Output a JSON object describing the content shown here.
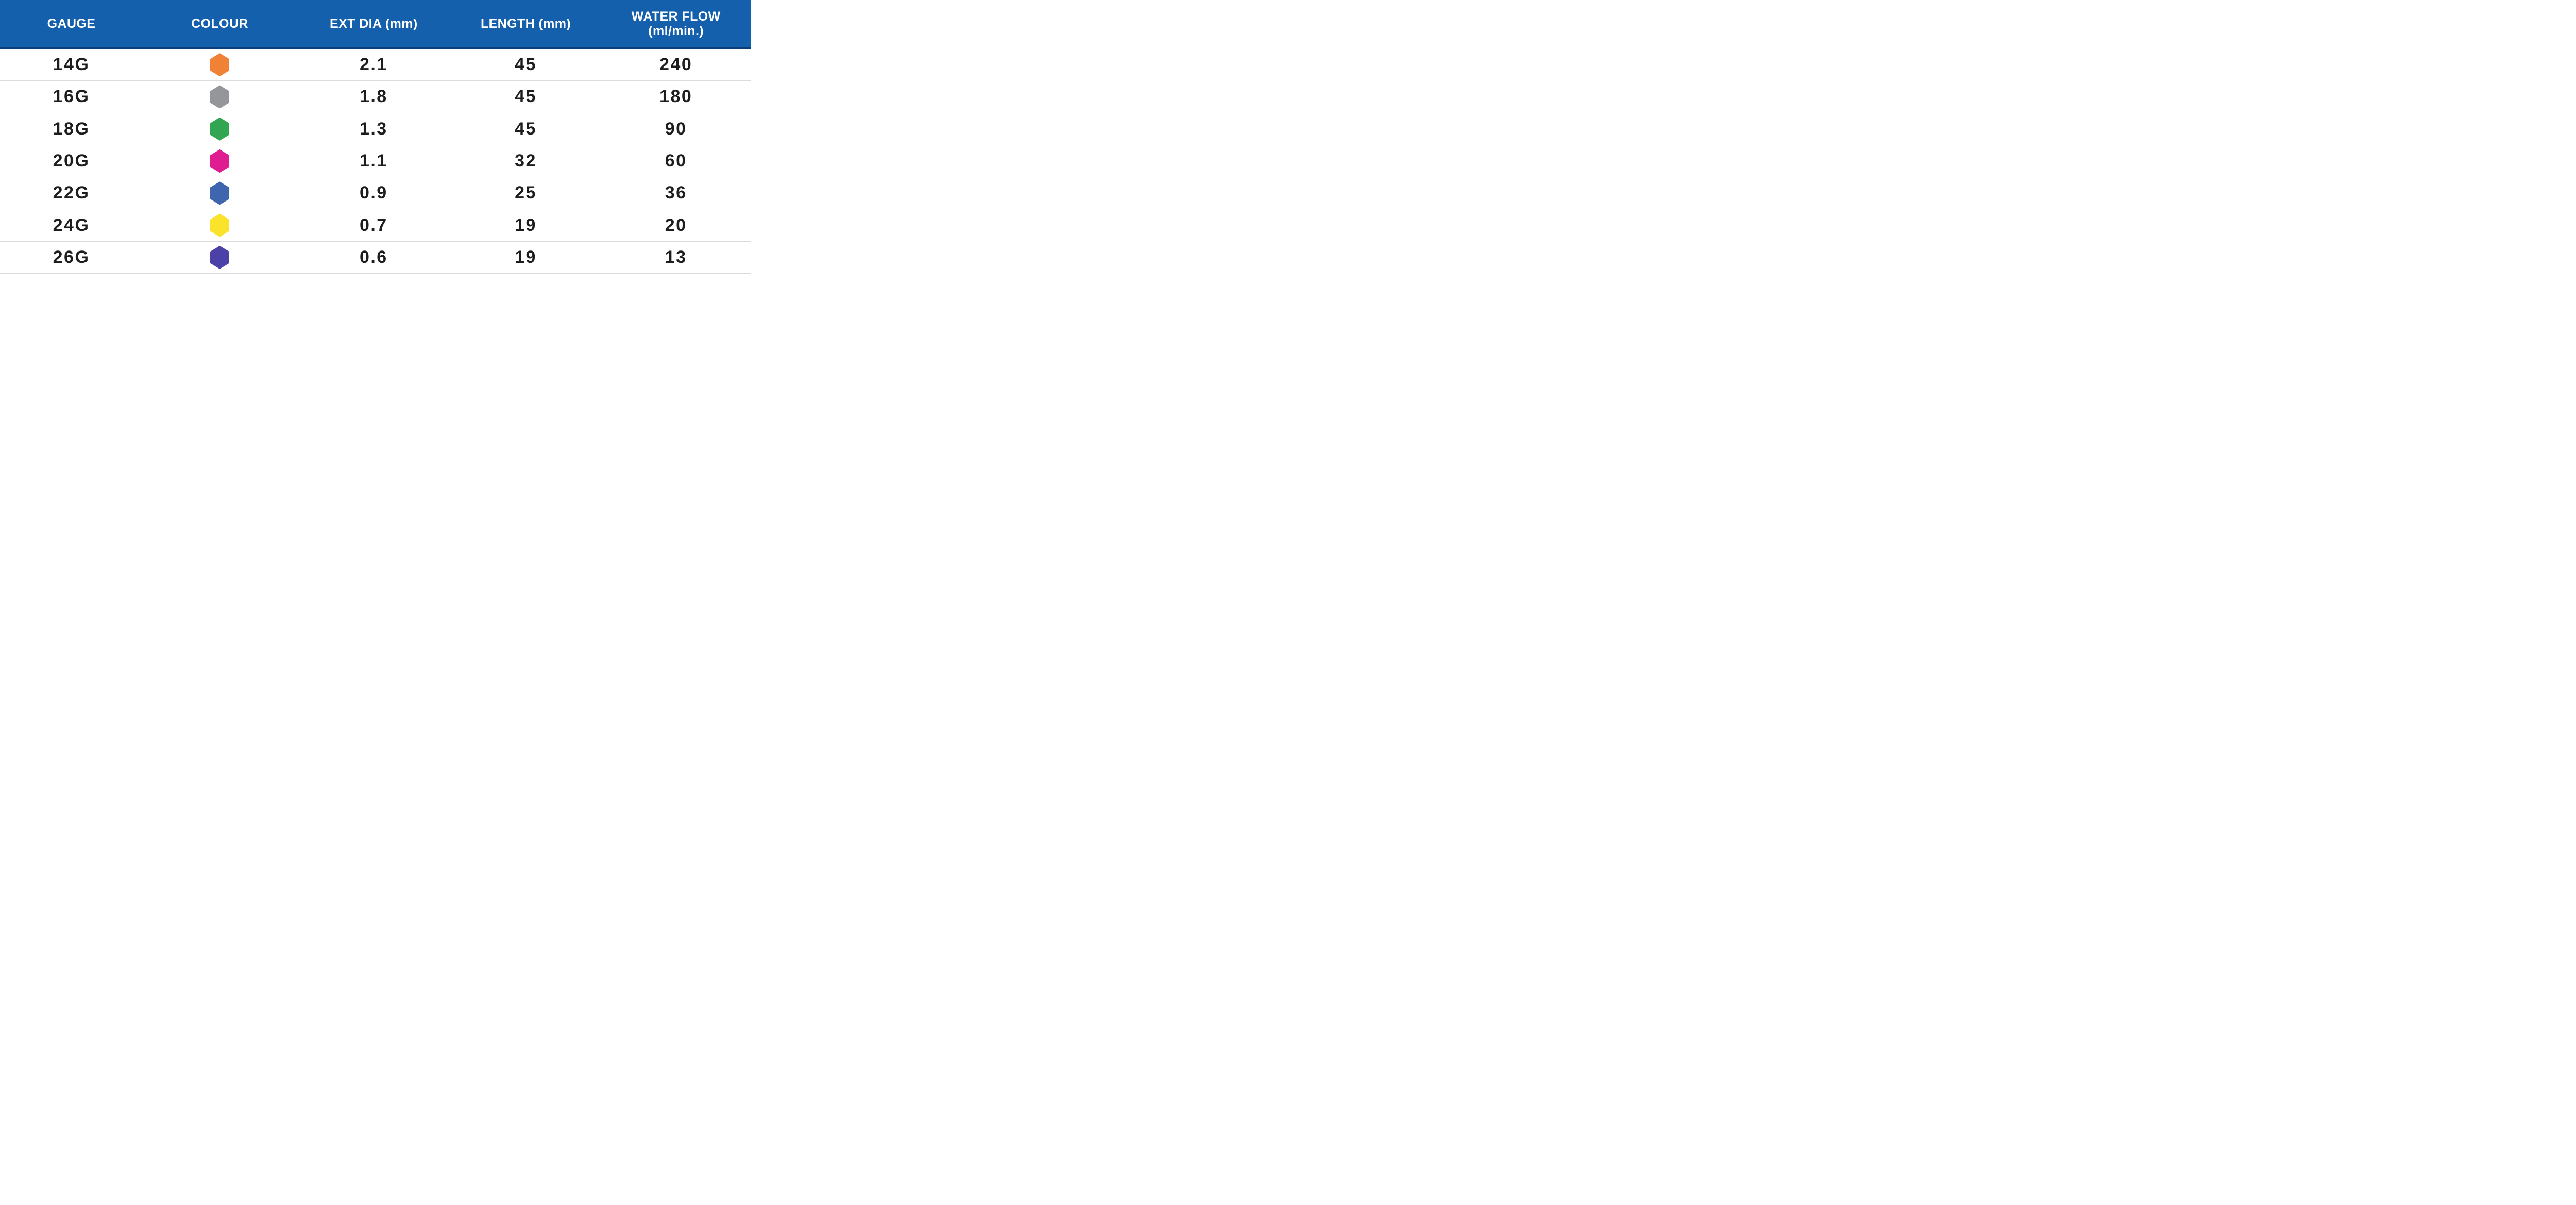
{
  "page": {
    "background": "#FFFFFF"
  },
  "header": {
    "background": "#1560AD",
    "border_color": "#0C3F79",
    "text_color": "#FFFFFF",
    "columns": [
      "GAUGE",
      "COLOUR",
      "EXT DIA (mm)",
      "LENGTH (mm)",
      "WATER FLOW (ml/min.)"
    ]
  },
  "table": {
    "row_separator_color": "#DBDBDB",
    "text_color": "#1D1D1B",
    "rows": [
      {
        "gauge": "14G",
        "colour_name": "orange",
        "colour_hex": "#F08236",
        "ext_dia_mm": "2.1",
        "length_mm": "45",
        "water_flow_ml_min": "240"
      },
      {
        "gauge": "16G",
        "colour_name": "grey",
        "colour_hex": "#95969A",
        "ext_dia_mm": "1.8",
        "length_mm": "45",
        "water_flow_ml_min": "180"
      },
      {
        "gauge": "18G",
        "colour_name": "green",
        "colour_hex": "#31A552",
        "ext_dia_mm": "1.3",
        "length_mm": "45",
        "water_flow_ml_min": "90"
      },
      {
        "gauge": "20G",
        "colour_name": "pink",
        "colour_hex": "#E01D90",
        "ext_dia_mm": "1.1",
        "length_mm": "32",
        "water_flow_ml_min": "60"
      },
      {
        "gauge": "22G",
        "colour_name": "blue",
        "colour_hex": "#3E65AE",
        "ext_dia_mm": "0.9",
        "length_mm": "25",
        "water_flow_ml_min": "36"
      },
      {
        "gauge": "24G",
        "colour_name": "yellow",
        "colour_hex": "#FBE32B",
        "ext_dia_mm": "0.7",
        "length_mm": "19",
        "water_flow_ml_min": "20"
      },
      {
        "gauge": "26G",
        "colour_name": "purple",
        "colour_hex": "#4C41A6",
        "ext_dia_mm": "0.6",
        "length_mm": "19",
        "water_flow_ml_min": "13"
      }
    ]
  },
  "chart_data": {
    "type": "table",
    "title": "",
    "columns": [
      "GAUGE",
      "COLOUR",
      "EXT DIA (mm)",
      "LENGTH (mm)",
      "WATER FLOW (ml/min.)"
    ],
    "rows": [
      [
        "14G",
        "orange",
        "2.1",
        "45",
        "240"
      ],
      [
        "16G",
        "grey",
        "1.8",
        "45",
        "180"
      ],
      [
        "18G",
        "green",
        "1.3",
        "45",
        "90"
      ],
      [
        "20G",
        "pink",
        "1.1",
        "32",
        "60"
      ],
      [
        "22G",
        "blue",
        "0.9",
        "25",
        "36"
      ],
      [
        "24G",
        "yellow",
        "0.7",
        "19",
        "20"
      ],
      [
        "26G",
        "purple",
        "0.6",
        "19",
        "13"
      ]
    ],
    "legend_position": "none",
    "grid": "horizontal-row-separators"
  }
}
